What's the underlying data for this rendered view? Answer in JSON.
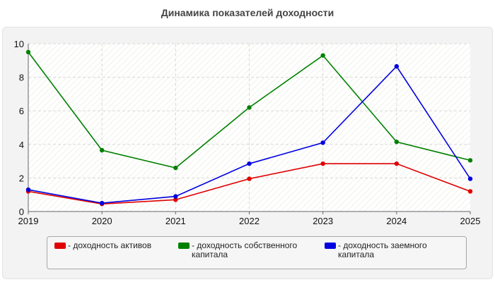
{
  "chart_data": {
    "type": "line",
    "title": "Динамика показателей доходности",
    "xlabel": "",
    "ylabel": "",
    "x": [
      "2019",
      "2020",
      "2021",
      "2022",
      "2023",
      "2024",
      "2025"
    ],
    "ylim": [
      0,
      10
    ],
    "yticks": [
      "0",
      "2",
      "4",
      "6",
      "8",
      "10"
    ],
    "grid": true,
    "legend_position": "bottom",
    "series": [
      {
        "name": "- доходность активов",
        "color": "#e00000",
        "values": [
          1.2,
          0.45,
          0.7,
          1.95,
          2.85,
          2.85,
          1.2
        ]
      },
      {
        "name": "- доходность собственного капитала",
        "color": "#008000",
        "values": [
          9.5,
          3.65,
          2.6,
          6.2,
          9.3,
          4.15,
          3.05
        ]
      },
      {
        "name": "- доходность заемного капитала",
        "color": "#0000e0",
        "values": [
          1.3,
          0.5,
          0.9,
          2.85,
          4.1,
          8.65,
          1.95
        ]
      }
    ]
  }
}
